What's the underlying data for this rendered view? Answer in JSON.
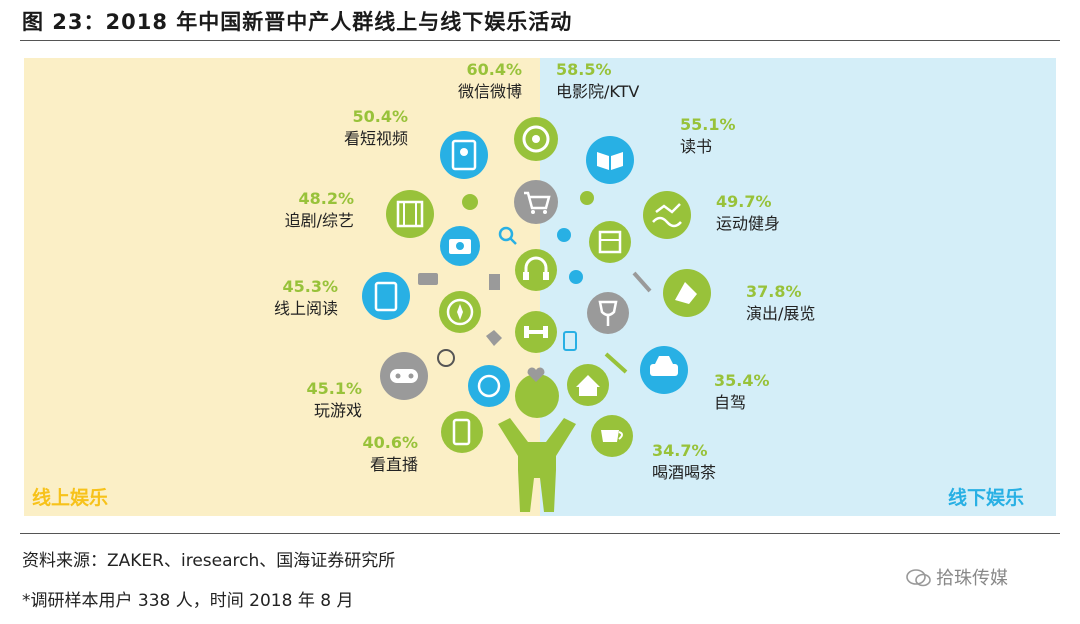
{
  "figure": {
    "title": "图 23：2018 年中国新晋中产人群线上与线下娱乐活动",
    "source": "资料来源：ZAKER、iresearch、国海证券研究所",
    "footnote": "*调研样本用户 338 人，时间 2018 年 8 月",
    "watermark": "拾珠传媒"
  },
  "panels": {
    "online": "线上娱乐",
    "offline": "线下娱乐"
  },
  "colors": {
    "online_bg": "#fbefc6",
    "offline_bg": "#d4eef8",
    "green": "#98c23a",
    "blue": "#28b0e4",
    "gray": "#9a9a9a",
    "online_label": "#f7c21a"
  },
  "chart_data": {
    "type": "infographic-percentages",
    "unit": "%",
    "online": [
      {
        "label": "微信微博",
        "value": 60.4,
        "pct": "60.4%",
        "icon": "target-icon"
      },
      {
        "label": "看短视频",
        "value": 50.4,
        "pct": "50.4%",
        "icon": "video-contact-icon"
      },
      {
        "label": "追剧/综艺",
        "value": 48.2,
        "pct": "48.2%",
        "icon": "film-icon"
      },
      {
        "label": "线上阅读",
        "value": 45.3,
        "pct": "45.3%",
        "icon": "tablet-icon"
      },
      {
        "label": "玩游戏",
        "value": 45.1,
        "pct": "45.1%",
        "icon": "gamepad-icon"
      },
      {
        "label": "看直播",
        "value": 40.6,
        "pct": "40.6%",
        "icon": "phone-live-icon"
      }
    ],
    "offline": [
      {
        "label": "电影院/KTV",
        "value": 58.5,
        "pct": "58.5%",
        "icon": "cinema-icon"
      },
      {
        "label": "读书",
        "value": 55.1,
        "pct": "55.1%",
        "icon": "book-icon"
      },
      {
        "label": "运动健身",
        "value": 49.7,
        "pct": "49.7%",
        "icon": "fitness-icon"
      },
      {
        "label": "演出/展览",
        "value": 37.8,
        "pct": "37.8%",
        "icon": "show-icon"
      },
      {
        "label": "自驾",
        "value": 35.4,
        "pct": "35.4%",
        "icon": "car-icon"
      },
      {
        "label": "喝酒喝茶",
        "value": 34.7,
        "pct": "34.7%",
        "icon": "tea-icon"
      }
    ]
  }
}
